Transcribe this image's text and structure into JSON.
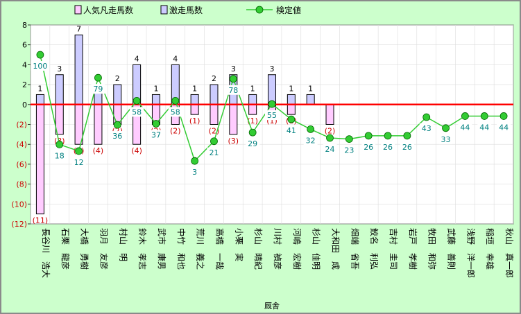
{
  "chart_data": {
    "type": "bar",
    "xlabel": "厩舎",
    "ylim": [
      -12,
      8
    ],
    "y_ticks": [
      {
        "v": 8,
        "label": "8"
      },
      {
        "v": 6,
        "label": "6"
      },
      {
        "v": 4,
        "label": "4"
      },
      {
        "v": 2,
        "label": "2"
      },
      {
        "v": 0,
        "label": "0"
      },
      {
        "v": -2,
        "label": "(2)"
      },
      {
        "v": -4,
        "label": "(4)"
      },
      {
        "v": -6,
        "label": "(6)"
      },
      {
        "v": -8,
        "label": "(8)"
      },
      {
        "v": -10,
        "label": "(10)"
      },
      {
        "v": -12,
        "label": "(12)"
      }
    ],
    "categories": [
      "長谷川　浩大",
      "石栗　龍彦",
      "大橋　勇樹",
      "羽月　友彦",
      "村山　明",
      "鈴木　孝志",
      "武市　康男",
      "中竹　和也",
      "荒川　義之",
      "高橋　一哉",
      "小栗　実",
      "杉山　晴紀",
      "川村　禎彦",
      "河嶋　宏樹",
      "杉山　佳明",
      "大和田　成",
      "畑端　省吾",
      "鮫名　利弘",
      "吉村　圭司",
      "岩戸　孝樹",
      "牧田　和弥",
      "武藤　善則",
      "浅野　洋一郎",
      "稲垣　幸雄",
      "秋山　真一郎"
    ],
    "series": [
      {
        "name": "人気凡走馬数",
        "color": "#ffccff",
        "values": [
          -11,
          -3,
          -4,
          -4,
          -2,
          -4,
          -2,
          -2,
          -1,
          -2,
          -3,
          -1,
          -1,
          -1,
          0,
          -2,
          0,
          0,
          0,
          0,
          0,
          0,
          0,
          0,
          0
        ],
        "labels": [
          "(11)",
          "(3)",
          "(4)",
          "(4)",
          "(2)",
          "(4)",
          "(2)",
          "(2)",
          "(1)",
          "(2)",
          "(3)",
          "(1)",
          "(1)",
          "(1)",
          "",
          "(2)",
          "",
          "",
          "",
          "",
          "",
          "",
          "",
          "",
          ""
        ]
      },
      {
        "name": "激走馬数",
        "color": "#ccccff",
        "values": [
          1,
          3,
          7,
          2,
          2,
          4,
          1,
          4,
          1,
          2,
          3,
          1,
          3,
          1,
          1,
          0,
          0,
          0,
          0,
          0,
          0,
          0,
          0,
          0,
          0
        ],
        "labels": [
          "1",
          "3",
          "7",
          "2",
          "2",
          "4",
          "1",
          "4",
          "1",
          "2",
          "3",
          "1",
          "3",
          "1",
          "1",
          "",
          "",
          "",
          "",
          "",
          "",
          "",
          "",
          "",
          ""
        ]
      },
      {
        "name": "検定値",
        "color": "#33cc33",
        "values": [
          100,
          18,
          12,
          79,
          36,
          58,
          37,
          58,
          3,
          21,
          78,
          29,
          55,
          41,
          32,
          24,
          23,
          26,
          26,
          26,
          43,
          33,
          44,
          44,
          44
        ]
      }
    ]
  }
}
